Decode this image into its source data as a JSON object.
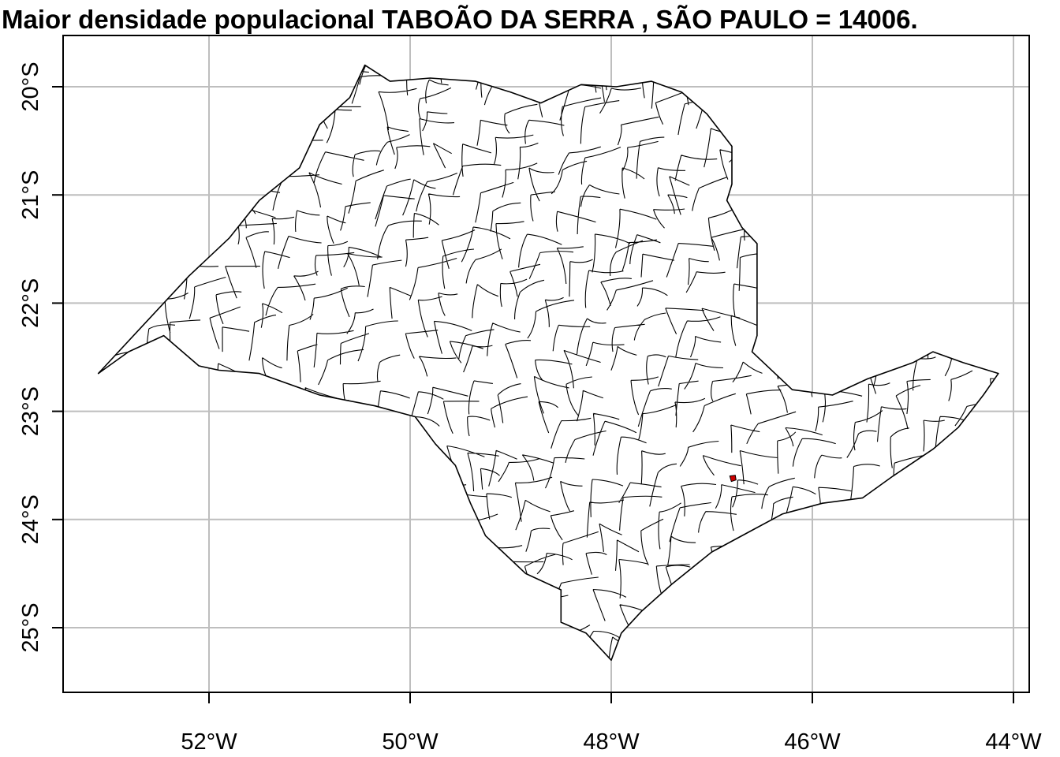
{
  "title": "Maior densidade populacional TABOÃO DA SERRA , SÃO PAULO = 14006.",
  "axes": {
    "x_ticks": [
      {
        "lon": -52,
        "label": "52°W"
      },
      {
        "lon": -50,
        "label": "50°W"
      },
      {
        "lon": -48,
        "label": "48°W"
      },
      {
        "lon": -46,
        "label": "46°W"
      },
      {
        "lon": -44,
        "label": "44°W"
      }
    ],
    "y_ticks": [
      {
        "lat": -20,
        "label": "20°S"
      },
      {
        "lat": -21,
        "label": "21°S"
      },
      {
        "lat": -22,
        "label": "22°S"
      },
      {
        "lat": -23,
        "label": "23°S"
      },
      {
        "lat": -24,
        "label": "24°S"
      },
      {
        "lat": -25,
        "label": "25°S"
      }
    ],
    "grid": true
  },
  "colors": {
    "outline": "#000000",
    "fill": "#ffffff",
    "grid": "#bebebe",
    "highlight": "#cc0000"
  },
  "highlight": {
    "lon": -46.79,
    "lat": -23.62
  },
  "state_outline": [
    [
      -50.45,
      -19.8
    ],
    [
      -50.2,
      -19.95
    ],
    [
      -49.8,
      -19.92
    ],
    [
      -49.35,
      -19.95
    ],
    [
      -49.0,
      -20.05
    ],
    [
      -48.7,
      -20.15
    ],
    [
      -48.3,
      -19.98
    ],
    [
      -47.95,
      -20.0
    ],
    [
      -47.6,
      -19.95
    ],
    [
      -47.3,
      -20.05
    ],
    [
      -47.05,
      -20.25
    ],
    [
      -46.8,
      -20.55
    ],
    [
      -46.8,
      -20.9
    ],
    [
      -46.85,
      -21.05
    ],
    [
      -46.7,
      -21.3
    ],
    [
      -46.55,
      -21.45
    ],
    [
      -46.55,
      -21.85
    ],
    [
      -46.55,
      -22.3
    ],
    [
      -46.6,
      -22.45
    ],
    [
      -46.2,
      -22.8
    ],
    [
      -45.8,
      -22.85
    ],
    [
      -45.45,
      -22.7
    ],
    [
      -45.0,
      -22.55
    ],
    [
      -44.8,
      -22.45
    ],
    [
      -44.5,
      -22.55
    ],
    [
      -44.15,
      -22.65
    ],
    [
      -44.3,
      -22.85
    ],
    [
      -44.55,
      -23.15
    ],
    [
      -44.8,
      -23.35
    ],
    [
      -45.2,
      -23.6
    ],
    [
      -45.5,
      -23.8
    ],
    [
      -45.9,
      -23.85
    ],
    [
      -46.3,
      -23.95
    ],
    [
      -46.6,
      -24.1
    ],
    [
      -47.0,
      -24.3
    ],
    [
      -47.4,
      -24.6
    ],
    [
      -47.7,
      -24.85
    ],
    [
      -47.9,
      -25.05
    ],
    [
      -48.0,
      -25.3
    ],
    [
      -48.1,
      -25.2
    ],
    [
      -48.25,
      -25.05
    ],
    [
      -48.5,
      -24.95
    ],
    [
      -48.5,
      -24.65
    ],
    [
      -48.85,
      -24.5
    ],
    [
      -49.25,
      -24.15
    ],
    [
      -49.4,
      -23.85
    ],
    [
      -49.55,
      -23.5
    ],
    [
      -49.75,
      -23.3
    ],
    [
      -49.95,
      -23.05
    ],
    [
      -50.35,
      -22.95
    ],
    [
      -50.9,
      -22.85
    ],
    [
      -51.5,
      -22.65
    ],
    [
      -51.9,
      -22.62
    ],
    [
      -52.1,
      -22.58
    ],
    [
      -52.45,
      -22.3
    ],
    [
      -52.8,
      -22.45
    ],
    [
      -53.1,
      -22.65
    ],
    [
      -52.7,
      -22.25
    ],
    [
      -52.2,
      -21.75
    ],
    [
      -51.8,
      -21.4
    ],
    [
      -51.5,
      -21.05
    ],
    [
      -51.1,
      -20.75
    ],
    [
      -50.9,
      -20.35
    ],
    [
      -50.6,
      -20.1
    ]
  ]
}
